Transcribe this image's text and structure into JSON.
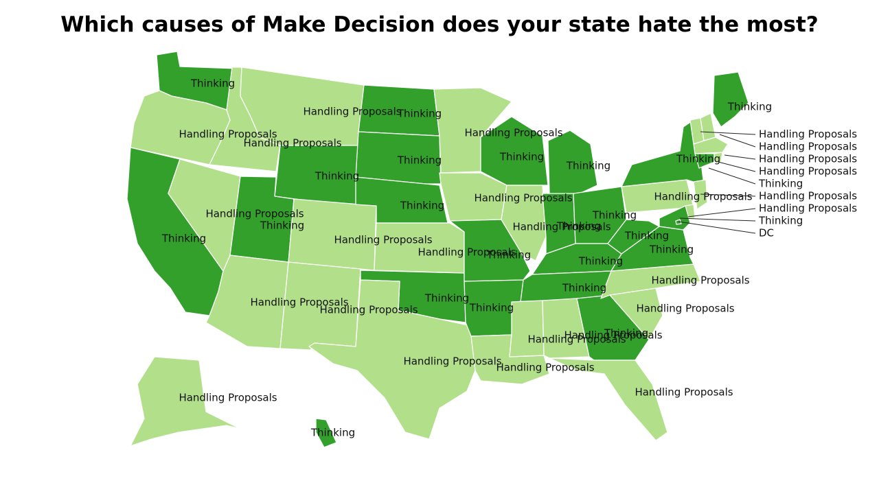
{
  "title": "Which causes of Make Decision does your state hate the most?",
  "colors": {
    "Thinking": "#33a02c",
    "Handling Proposals": "#b2df8a"
  },
  "states": [
    {
      "id": "WA",
      "cat": "Thinking",
      "label": "Thinking"
    },
    {
      "id": "OR",
      "cat": "Handling Proposals",
      "label": "Handling Proposals"
    },
    {
      "id": "CA",
      "cat": "Thinking",
      "label": "Thinking"
    },
    {
      "id": "ID",
      "cat": "Handling Proposals",
      "label": "Handling Proposals"
    },
    {
      "id": "NV",
      "cat": "Handling Proposals",
      "label": "Handling Proposals"
    },
    {
      "id": "MT",
      "cat": "Handling Proposals",
      "label": "Handling Proposals"
    },
    {
      "id": "WY",
      "cat": "Thinking",
      "label": "Thinking"
    },
    {
      "id": "UT",
      "cat": "Thinking",
      "label": "Thinking"
    },
    {
      "id": "AZ",
      "cat": "Handling Proposals",
      "label": "Handling Proposals"
    },
    {
      "id": "CO",
      "cat": "Handling Proposals",
      "label": "Handling Proposals"
    },
    {
      "id": "NM",
      "cat": "Handling Proposals",
      "label": "Handling Proposals"
    },
    {
      "id": "ND",
      "cat": "Thinking",
      "label": "Thinking"
    },
    {
      "id": "SD",
      "cat": "Thinking",
      "label": "Thinking"
    },
    {
      "id": "NE",
      "cat": "Thinking",
      "label": "Thinking"
    },
    {
      "id": "KS",
      "cat": "Handling Proposals",
      "label": "Handling Proposals"
    },
    {
      "id": "OK",
      "cat": "Thinking",
      "label": "Thinking"
    },
    {
      "id": "TX",
      "cat": "Handling Proposals",
      "label": "Handling Proposals"
    },
    {
      "id": "MN",
      "cat": "Handling Proposals",
      "label": "Handling Proposals"
    },
    {
      "id": "IA",
      "cat": "Handling Proposals",
      "label": "Handling Proposals"
    },
    {
      "id": "MO",
      "cat": "Thinking",
      "label": "Thinking"
    },
    {
      "id": "AR",
      "cat": "Thinking",
      "label": "Thinking"
    },
    {
      "id": "LA",
      "cat": "Handling Proposals",
      "label": "Handling Proposals"
    },
    {
      "id": "WI",
      "cat": "Thinking",
      "label": "Thinking"
    },
    {
      "id": "IL",
      "cat": "Handling Proposals",
      "label": "Handling Proposals"
    },
    {
      "id": "MI",
      "cat": "Thinking",
      "label": "Thinking"
    },
    {
      "id": "IN",
      "cat": "Thinking",
      "label": "Thinking"
    },
    {
      "id": "OH",
      "cat": "Thinking",
      "label": "Thinking"
    },
    {
      "id": "KY",
      "cat": "Thinking",
      "label": "Thinking"
    },
    {
      "id": "TN",
      "cat": "Thinking",
      "label": "Thinking"
    },
    {
      "id": "MS",
      "cat": "Handling Proposals",
      "label": "Handling Proposals"
    },
    {
      "id": "AL",
      "cat": "Handling Proposals",
      "label": "Handling Proposals"
    },
    {
      "id": "GA",
      "cat": "Thinking",
      "label": "Thinking"
    },
    {
      "id": "FL",
      "cat": "Handling Proposals",
      "label": "Handling Proposals"
    },
    {
      "id": "SC",
      "cat": "Handling Proposals",
      "label": "Handling Proposals"
    },
    {
      "id": "NC",
      "cat": "Handling Proposals",
      "label": "Handling Proposals"
    },
    {
      "id": "VA",
      "cat": "Thinking",
      "label": "Thinking"
    },
    {
      "id": "WV",
      "cat": "Thinking",
      "label": "Thinking"
    },
    {
      "id": "PA",
      "cat": "Handling Proposals",
      "label": "Handling Proposals"
    },
    {
      "id": "NY",
      "cat": "Thinking",
      "label": "Thinking"
    },
    {
      "id": "ME",
      "cat": "Thinking",
      "label": "Thinking"
    },
    {
      "id": "AK",
      "cat": "Handling Proposals",
      "label": "Handling Proposals"
    },
    {
      "id": "HI",
      "cat": "Thinking",
      "label": "Thinking"
    }
  ],
  "northeast": [
    {
      "id": "VT",
      "cat": "Handling Proposals",
      "label": "Handling Proposals"
    },
    {
      "id": "NH",
      "cat": "Handling Proposals",
      "label": "Handling Proposals"
    },
    {
      "id": "MA",
      "cat": "Handling Proposals",
      "label": "Handling Proposals"
    },
    {
      "id": "RI",
      "cat": "Handling Proposals",
      "label": "Handling Proposals"
    },
    {
      "id": "CT",
      "cat": "Thinking",
      "label": "Thinking"
    },
    {
      "id": "NJ",
      "cat": "Handling Proposals",
      "label": "Handling Proposals"
    },
    {
      "id": "DE",
      "cat": "Handling Proposals",
      "label": "Handling Proposals"
    },
    {
      "id": "MD",
      "cat": "Thinking",
      "label": "Thinking"
    },
    {
      "id": "DC",
      "cat": "Thinking",
      "label": "DC"
    }
  ]
}
